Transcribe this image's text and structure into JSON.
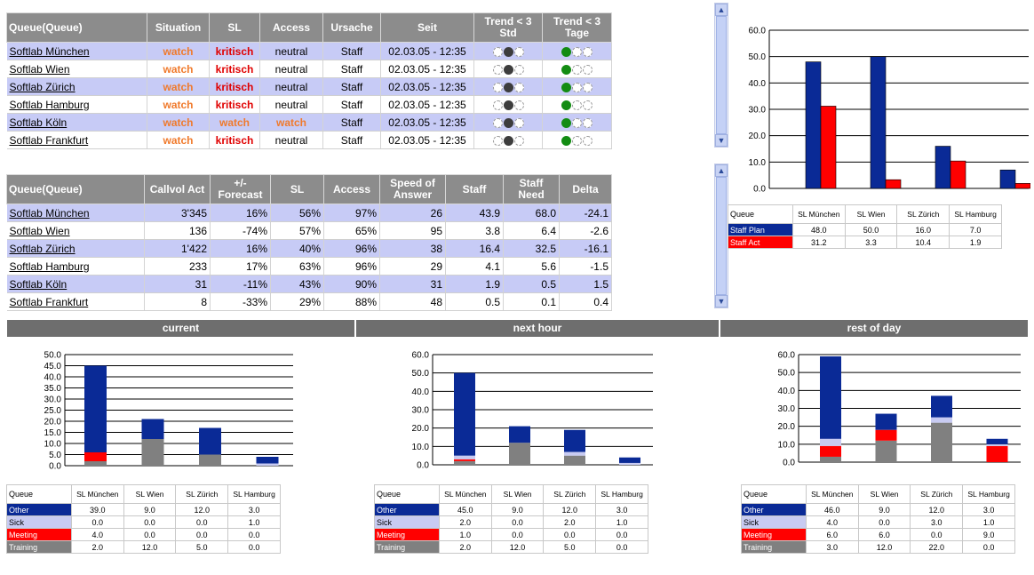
{
  "colors": {
    "navy": "#0a2a96",
    "red": "#ff0000",
    "light": "#c8cbf2",
    "grey": "#808080",
    "header": "#8c8c8c",
    "section": "#6e6e6e"
  },
  "status_table": {
    "headers": [
      "Queue(Queue)",
      "Situation",
      "SL",
      "Access",
      "Ursache",
      "Seit",
      "Trend < 3 Std",
      "Trend < 3 Tage"
    ],
    "rows": [
      {
        "queue": "Softlab München",
        "situation": "watch",
        "sl": "kritisch",
        "access": "neutral",
        "ursache": "Staff",
        "seit": "02.03.05 - 12:35"
      },
      {
        "queue": "Softlab Wien",
        "situation": "watch",
        "sl": "kritisch",
        "access": "neutral",
        "ursache": "Staff",
        "seit": "02.03.05 - 12:35"
      },
      {
        "queue": "Softlab Zürich",
        "situation": "watch",
        "sl": "kritisch",
        "access": "neutral",
        "ursache": "Staff",
        "seit": "02.03.05 - 12:35"
      },
      {
        "queue": "Softlab Hamburg",
        "situation": "watch",
        "sl": "kritisch",
        "access": "neutral",
        "ursache": "Staff",
        "seit": "02.03.05 - 12:35"
      },
      {
        "queue": "Softlab Köln",
        "situation": "watch",
        "sl": "watch",
        "access": "watch",
        "ursache": "Staff",
        "seit": "02.03.05 - 12:35"
      },
      {
        "queue": "Softlab Frankfurt",
        "situation": "watch",
        "sl": "kritisch",
        "access": "neutral",
        "ursache": "Staff",
        "seit": "02.03.05 - 12:35"
      }
    ]
  },
  "metrics_table": {
    "headers": [
      "Queue(Queue)",
      "Callvol Act",
      "+/- Forecast",
      "SL",
      "Access",
      "Speed of Answer",
      "Staff",
      "Staff Need",
      "Delta"
    ],
    "rows": [
      {
        "queue": "Softlab München",
        "callvol": "3'345",
        "forecast": "16%",
        "sl": "56%",
        "access": "97%",
        "speed": "26",
        "staff": "43.9",
        "need": "68.0",
        "delta": "-24.1"
      },
      {
        "queue": "Softlab Wien",
        "callvol": "136",
        "forecast": "-74%",
        "sl": "57%",
        "access": "65%",
        "speed": "95",
        "staff": "3.8",
        "need": "6.4",
        "delta": "-2.6"
      },
      {
        "queue": "Softlab Zürich",
        "callvol": "1'422",
        "forecast": "16%",
        "sl": "40%",
        "access": "96%",
        "speed": "38",
        "staff": "16.4",
        "need": "32.5",
        "delta": "-16.1"
      },
      {
        "queue": "Softlab Hamburg",
        "callvol": "233",
        "forecast": "17%",
        "sl": "63%",
        "access": "96%",
        "speed": "29",
        "staff": "4.1",
        "need": "5.6",
        "delta": "-1.5"
      },
      {
        "queue": "Softlab Köln",
        "callvol": "31",
        "forecast": "-11%",
        "sl": "43%",
        "access": "90%",
        "speed": "31",
        "staff": "1.9",
        "need": "0.5",
        "delta": "1.5"
      },
      {
        "queue": "Softlab Frankfurt",
        "callvol": "8",
        "forecast": "-33%",
        "sl": "29%",
        "access": "88%",
        "speed": "48",
        "staff": "0.5",
        "need": "0.1",
        "delta": "0.4"
      }
    ]
  },
  "sections": {
    "current": "current",
    "next_hour": "next hour",
    "rest_of_day": "rest of day"
  },
  "staff_legend_header": "Queue",
  "chart_data": [
    {
      "id": "staff",
      "type": "bar",
      "categories": [
        "SL München",
        "SL Wien",
        "SL Zürich",
        "SL Hamburg"
      ],
      "ylim": [
        0,
        60
      ],
      "ticks": [
        "0.0",
        "10.0",
        "20.0",
        "30.0",
        "40.0",
        "50.0",
        "60.0"
      ],
      "tickvals": [
        0,
        10,
        20,
        30,
        40,
        50,
        60
      ],
      "series": [
        {
          "name": "Staff Plan",
          "color": "#0a2a96",
          "values": [
            48.0,
            50.0,
            16.0,
            7.0
          ],
          "labels": [
            "48.0",
            "50.0",
            "16.0",
            "7.0"
          ]
        },
        {
          "name": "Staff Act",
          "color": "#ff0000",
          "values": [
            31.2,
            3.3,
            10.4,
            1.9
          ],
          "labels": [
            "31.2",
            "3.3",
            "10.4",
            "1.9"
          ]
        }
      ]
    },
    {
      "id": "current",
      "type": "bar",
      "categories": [
        "SL München",
        "SL Wien",
        "SL Zürich",
        "SL Hamburg"
      ],
      "ylim": [
        0,
        50
      ],
      "ticks": [
        "0.0",
        "5.0",
        "10.0",
        "15.0",
        "20.0",
        "25.0",
        "30.0",
        "35.0",
        "40.0",
        "45.0",
        "50.0"
      ],
      "tickvals": [
        0,
        5,
        10,
        15,
        20,
        25,
        30,
        35,
        40,
        45,
        50
      ],
      "series": [
        {
          "name": "Other",
          "color": "#0a2a96",
          "values": [
            39,
            9,
            12,
            3
          ],
          "labels": [
            "39.0",
            "9.0",
            "12.0",
            "3.0"
          ]
        },
        {
          "name": "Sick",
          "color": "#c8cbf2",
          "values": [
            0,
            0,
            0,
            1
          ],
          "labels": [
            "0.0",
            "0.0",
            "0.0",
            "1.0"
          ]
        },
        {
          "name": "Meeting",
          "color": "#ff0000",
          "values": [
            4,
            0,
            0,
            0
          ],
          "labels": [
            "4.0",
            "0.0",
            "0.0",
            "0.0"
          ]
        },
        {
          "name": "Training",
          "color": "#808080",
          "values": [
            2,
            12,
            5,
            0
          ],
          "labels": [
            "2.0",
            "12.0",
            "5.0",
            "0.0"
          ]
        }
      ]
    },
    {
      "id": "next_hour",
      "type": "bar",
      "categories": [
        "SL München",
        "SL Wien",
        "SL Zürich",
        "SL Hamburg"
      ],
      "ylim": [
        0,
        60
      ],
      "ticks": [
        "0.0",
        "10.0",
        "20.0",
        "30.0",
        "40.0",
        "50.0",
        "60.0"
      ],
      "tickvals": [
        0,
        10,
        20,
        30,
        40,
        50,
        60
      ],
      "series": [
        {
          "name": "Other",
          "color": "#0a2a96",
          "values": [
            45,
            9,
            12,
            3
          ],
          "labels": [
            "45.0",
            "9.0",
            "12.0",
            "3.0"
          ]
        },
        {
          "name": "Sick",
          "color": "#c8cbf2",
          "values": [
            2,
            0,
            2,
            1
          ],
          "labels": [
            "2.0",
            "0.0",
            "2.0",
            "1.0"
          ]
        },
        {
          "name": "Meeting",
          "color": "#ff0000",
          "values": [
            1,
            0,
            0,
            0
          ],
          "labels": [
            "1.0",
            "0.0",
            "0.0",
            "0.0"
          ]
        },
        {
          "name": "Training",
          "color": "#808080",
          "values": [
            2,
            12,
            5,
            0
          ],
          "labels": [
            "2.0",
            "12.0",
            "5.0",
            "0.0"
          ]
        }
      ]
    },
    {
      "id": "rest_of_day",
      "type": "bar",
      "categories": [
        "SL München",
        "SL Wien",
        "SL Zürich",
        "SL Hamburg"
      ],
      "ylim": [
        0,
        60
      ],
      "ticks": [
        "0.0",
        "10.0",
        "20.0",
        "30.0",
        "40.0",
        "50.0",
        "60.0"
      ],
      "tickvals": [
        0,
        10,
        20,
        30,
        40,
        50,
        60
      ],
      "series": [
        {
          "name": "Other",
          "color": "#0a2a96",
          "values": [
            46,
            9,
            12,
            3
          ],
          "labels": [
            "46.0",
            "9.0",
            "12.0",
            "3.0"
          ]
        },
        {
          "name": "Sick",
          "color": "#c8cbf2",
          "values": [
            4,
            0,
            3,
            1
          ],
          "labels": [
            "4.0",
            "0.0",
            "3.0",
            "1.0"
          ]
        },
        {
          "name": "Meeting",
          "color": "#ff0000",
          "values": [
            6,
            6,
            0,
            9
          ],
          "labels": [
            "6.0",
            "6.0",
            "0.0",
            "9.0"
          ]
        },
        {
          "name": "Training",
          "color": "#808080",
          "values": [
            3,
            12,
            22,
            0
          ],
          "labels": [
            "3.0",
            "12.0",
            "22.0",
            "0.0"
          ]
        }
      ]
    }
  ]
}
